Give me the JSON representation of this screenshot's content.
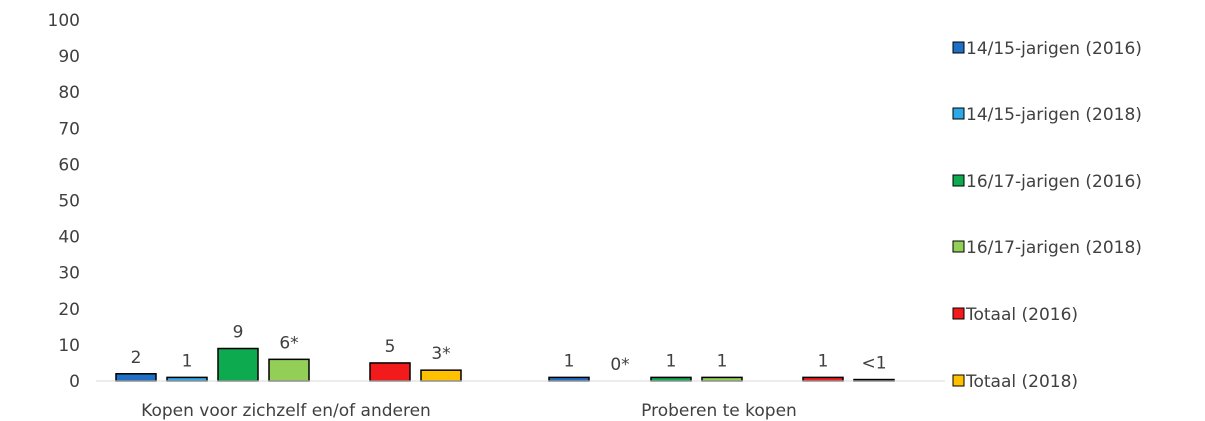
{
  "chart_data": {
    "type": "bar",
    "ylim": [
      0,
      100
    ],
    "yticks": [
      0,
      10,
      20,
      30,
      40,
      50,
      60,
      70,
      80,
      90,
      100
    ],
    "grid": false,
    "legend_position": "right",
    "categories": [
      "Kopen voor zichzelf en/of anderen",
      "Proberen te kopen"
    ],
    "series": [
      {
        "name": "14/15-jarigen (2016)",
        "color": "#1F6FC5",
        "values": [
          2,
          1
        ],
        "labels": [
          "2",
          "1"
        ]
      },
      {
        "name": "14/15-jarigen (2018)",
        "color": "#2EA9E8",
        "values": [
          1,
          0
        ],
        "labels": [
          "1",
          "0*"
        ]
      },
      {
        "name": "16/17-jarigen (2016)",
        "color": "#0DAA4F",
        "values": [
          9,
          1
        ],
        "labels": [
          "9",
          "1"
        ]
      },
      {
        "name": "16/17-jarigen (2018)",
        "color": "#93CE57",
        "values": [
          6,
          1
        ],
        "labels": [
          "6*",
          "1"
        ]
      },
      {
        "name": "Totaal (2016)",
        "color": "#F21A1A",
        "values": [
          5,
          1
        ],
        "labels": [
          "5",
          "1"
        ]
      },
      {
        "name": "Totaal (2018)",
        "color": "#FFC000",
        "values": [
          3,
          0.4
        ],
        "labels": [
          "3*",
          "<1"
        ]
      }
    ]
  }
}
